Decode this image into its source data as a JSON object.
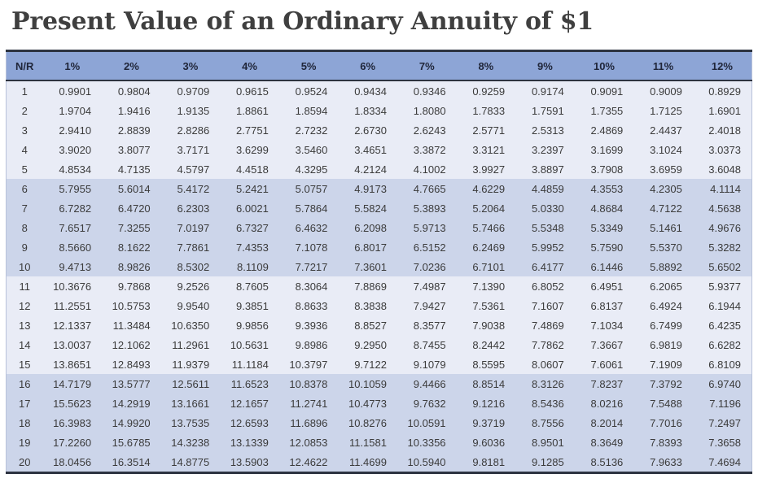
{
  "page": {
    "title": "Present Value of an Ordinary Annuity of $1"
  },
  "colors": {
    "header_bg": "#8da5d6",
    "band_light": "#e9ecf6",
    "band_dark": "#ccd5ea",
    "border_dark": "#2d3340",
    "side_border": "#b8c2da",
    "title_color": "#3f3f3f",
    "text_color": "#3b3b3b",
    "header_text": "#20263a"
  },
  "table": {
    "columns": [
      "N/R",
      "1%",
      "2%",
      "3%",
      "4%",
      "5%",
      "6%",
      "7%",
      "8%",
      "9%",
      "10%",
      "11%",
      "12%"
    ],
    "rows": [
      {
        "n": "1",
        "values": [
          "0.9901",
          "0.9804",
          "0.9709",
          "0.9615",
          "0.9524",
          "0.9434",
          "0.9346",
          "0.9259",
          "0.9174",
          "0.9091",
          "0.9009",
          "0.8929"
        ]
      },
      {
        "n": "2",
        "values": [
          "1.9704",
          "1.9416",
          "1.9135",
          "1.8861",
          "1.8594",
          "1.8334",
          "1.8080",
          "1.7833",
          "1.7591",
          "1.7355",
          "1.7125",
          "1.6901"
        ]
      },
      {
        "n": "3",
        "values": [
          "2.9410",
          "2.8839",
          "2.8286",
          "2.7751",
          "2.7232",
          "2.6730",
          "2.6243",
          "2.5771",
          "2.5313",
          "2.4869",
          "2.4437",
          "2.4018"
        ]
      },
      {
        "n": "4",
        "values": [
          "3.9020",
          "3.8077",
          "3.7171",
          "3.6299",
          "3.5460",
          "3.4651",
          "3.3872",
          "3.3121",
          "3.2397",
          "3.1699",
          "3.1024",
          "3.0373"
        ]
      },
      {
        "n": "5",
        "values": [
          "4.8534",
          "4.7135",
          "4.5797",
          "4.4518",
          "4.3295",
          "4.2124",
          "4.1002",
          "3.9927",
          "3.8897",
          "3.7908",
          "3.6959",
          "3.6048"
        ]
      },
      {
        "n": "6",
        "values": [
          "5.7955",
          "5.6014",
          "5.4172",
          "5.2421",
          "5.0757",
          "4.9173",
          "4.7665",
          "4.6229",
          "4.4859",
          "4.3553",
          "4.2305",
          "4.1114"
        ]
      },
      {
        "n": "7",
        "values": [
          "6.7282",
          "6.4720",
          "6.2303",
          "6.0021",
          "5.7864",
          "5.5824",
          "5.3893",
          "5.2064",
          "5.0330",
          "4.8684",
          "4.7122",
          "4.5638"
        ]
      },
      {
        "n": "8",
        "values": [
          "7.6517",
          "7.3255",
          "7.0197",
          "6.7327",
          "6.4632",
          "6.2098",
          "5.9713",
          "5.7466",
          "5.5348",
          "5.3349",
          "5.1461",
          "4.9676"
        ]
      },
      {
        "n": "9",
        "values": [
          "8.5660",
          "8.1622",
          "7.7861",
          "7.4353",
          "7.1078",
          "6.8017",
          "6.5152",
          "6.2469",
          "5.9952",
          "5.7590",
          "5.5370",
          "5.3282"
        ]
      },
      {
        "n": "10",
        "values": [
          "9.4713",
          "8.9826",
          "8.5302",
          "8.1109",
          "7.7217",
          "7.3601",
          "7.0236",
          "6.7101",
          "6.4177",
          "6.1446",
          "5.8892",
          "5.6502"
        ]
      },
      {
        "n": "11",
        "values": [
          "10.3676",
          "9.7868",
          "9.2526",
          "8.7605",
          "8.3064",
          "7.8869",
          "7.4987",
          "7.1390",
          "6.8052",
          "6.4951",
          "6.2065",
          "5.9377"
        ]
      },
      {
        "n": "12",
        "values": [
          "11.2551",
          "10.5753",
          "9.9540",
          "9.3851",
          "8.8633",
          "8.3838",
          "7.9427",
          "7.5361",
          "7.1607",
          "6.8137",
          "6.4924",
          "6.1944"
        ]
      },
      {
        "n": "13",
        "values": [
          "12.1337",
          "11.3484",
          "10.6350",
          "9.9856",
          "9.3936",
          "8.8527",
          "8.3577",
          "7.9038",
          "7.4869",
          "7.1034",
          "6.7499",
          "6.4235"
        ]
      },
      {
        "n": "14",
        "values": [
          "13.0037",
          "12.1062",
          "11.2961",
          "10.5631",
          "9.8986",
          "9.2950",
          "8.7455",
          "8.2442",
          "7.7862",
          "7.3667",
          "6.9819",
          "6.6282"
        ]
      },
      {
        "n": "15",
        "values": [
          "13.8651",
          "12.8493",
          "11.9379",
          "11.1184",
          "10.3797",
          "9.7122",
          "9.1079",
          "8.5595",
          "8.0607",
          "7.6061",
          "7.1909",
          "6.8109"
        ]
      },
      {
        "n": "16",
        "values": [
          "14.7179",
          "13.5777",
          "12.5611",
          "11.6523",
          "10.8378",
          "10.1059",
          "9.4466",
          "8.8514",
          "8.3126",
          "7.8237",
          "7.3792",
          "6.9740"
        ]
      },
      {
        "n": "17",
        "values": [
          "15.5623",
          "14.2919",
          "13.1661",
          "12.1657",
          "11.2741",
          "10.4773",
          "9.7632",
          "9.1216",
          "8.5436",
          "8.0216",
          "7.5488",
          "7.1196"
        ]
      },
      {
        "n": "18",
        "values": [
          "16.3983",
          "14.9920",
          "13.7535",
          "12.6593",
          "11.6896",
          "10.8276",
          "10.0591",
          "9.3719",
          "8.7556",
          "8.2014",
          "7.7016",
          "7.2497"
        ]
      },
      {
        "n": "19",
        "values": [
          "17.2260",
          "15.6785",
          "14.3238",
          "13.1339",
          "12.0853",
          "11.1581",
          "10.3356",
          "9.6036",
          "8.9501",
          "8.3649",
          "7.8393",
          "7.3658"
        ]
      },
      {
        "n": "20",
        "values": [
          "18.0456",
          "16.3514",
          "14.8775",
          "13.5903",
          "12.4622",
          "11.4699",
          "10.5940",
          "9.8181",
          "9.1285",
          "8.5136",
          "7.9633",
          "7.4694"
        ]
      }
    ]
  }
}
